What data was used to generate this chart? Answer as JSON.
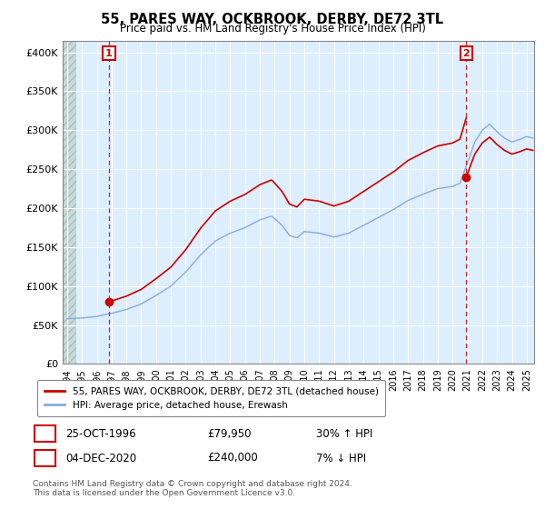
{
  "title": "55, PARES WAY, OCKBROOK, DERBY, DE72 3TL",
  "subtitle": "Price paid vs. HM Land Registry's House Price Index (HPI)",
  "ylabel_ticks": [
    "£0",
    "£50K",
    "£100K",
    "£150K",
    "£200K",
    "£250K",
    "£300K",
    "£350K",
    "£400K"
  ],
  "ytick_values": [
    0,
    50000,
    100000,
    150000,
    200000,
    250000,
    300000,
    350000,
    400000
  ],
  "ylim": [
    0,
    415000
  ],
  "xlim_start": 1993.7,
  "xlim_end": 2025.5,
  "sale1_x": 1996.82,
  "sale1_y": 79950,
  "sale2_x": 2020.92,
  "sale2_y": 240000,
  "sale1_label": "1",
  "sale2_label": "2",
  "legend_line1": "55, PARES WAY, OCKBROOK, DERBY, DE72 3TL (detached house)",
  "legend_line2": "HPI: Average price, detached house, Erewash",
  "table_row1": [
    "1",
    "25-OCT-1996",
    "£79,950",
    "30% ↑ HPI"
  ],
  "table_row2": [
    "2",
    "04-DEC-2020",
    "£240,000",
    "7% ↓ HPI"
  ],
  "footnote": "Contains HM Land Registry data © Crown copyright and database right 2024.\nThis data is licensed under the Open Government Licence v3.0.",
  "sale_color": "#cc0000",
  "hpi_color": "#88aadd",
  "vline_color": "#cc0000",
  "chart_bg": "#ddeeff",
  "hatch_color": "#bbcccc"
}
